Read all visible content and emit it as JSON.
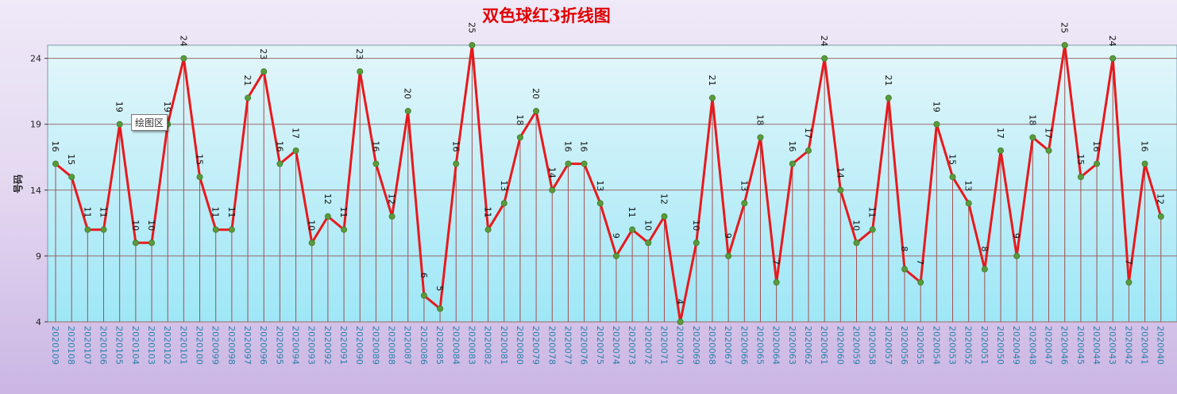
{
  "tooltip": "绘图区",
  "chart_data": {
    "type": "line",
    "title": "双色球红3折线图",
    "xlabel": "",
    "ylabel": "号码",
    "ylim": [
      4,
      25
    ],
    "yticks": [
      4,
      9,
      14,
      19,
      24
    ],
    "grid": true,
    "legend": "none",
    "colors": {
      "line": "#e8191c",
      "marker": "#5a9a3c",
      "drop_line": "#a05050",
      "plot_bg_top": "#e3f6fa",
      "plot_bg_bottom": "#9ee7f7",
      "grid": "#9a6a6a",
      "axis_text": "#2a7fa8"
    },
    "categories": [
      "2020109",
      "2020108",
      "2020107",
      "2020106",
      "2020105",
      "2020104",
      "2020103",
      "2020102",
      "2020101",
      "2020100",
      "2020099",
      "2020098",
      "2020097",
      "2020096",
      "2020095",
      "2020094",
      "2020093",
      "2020092",
      "2020091",
      "2020090",
      "2020089",
      "2020088",
      "2020087",
      "2020086",
      "2020085",
      "2020084",
      "2020083",
      "2020082",
      "2020081",
      "2020080",
      "2020079",
      "2020078",
      "2020077",
      "2020076",
      "2020075",
      "2020074",
      "2020073",
      "2020072",
      "2020071",
      "2020070",
      "2020069",
      "2020068",
      "2020067",
      "2020066",
      "2020065",
      "2020064",
      "2020063",
      "2020062",
      "2020061",
      "2020060",
      "2020059",
      "2020058",
      "2020057",
      "2020056",
      "2020055",
      "2020054",
      "2020053",
      "2020052",
      "2020051",
      "2020050",
      "2020049",
      "2020048",
      "2020047",
      "2020046",
      "2020045",
      "2020044",
      "2020043",
      "2020042",
      "2020041",
      "2020040"
    ],
    "values": [
      16,
      15,
      11,
      11,
      19,
      10,
      10,
      19,
      24,
      15,
      11,
      11,
      21,
      23,
      16,
      17,
      10,
      12,
      11,
      23,
      16,
      12,
      20,
      6,
      5,
      16,
      25,
      11,
      13,
      18,
      20,
      14,
      16,
      16,
      13,
      9,
      11,
      10,
      12,
      4,
      10,
      21,
      9,
      13,
      18,
      7,
      16,
      17,
      24,
      14,
      10,
      11,
      21,
      8,
      7,
      19,
      15,
      13,
      8,
      17,
      9,
      18,
      17,
      25,
      15,
      16,
      24,
      7,
      16,
      12
    ]
  }
}
